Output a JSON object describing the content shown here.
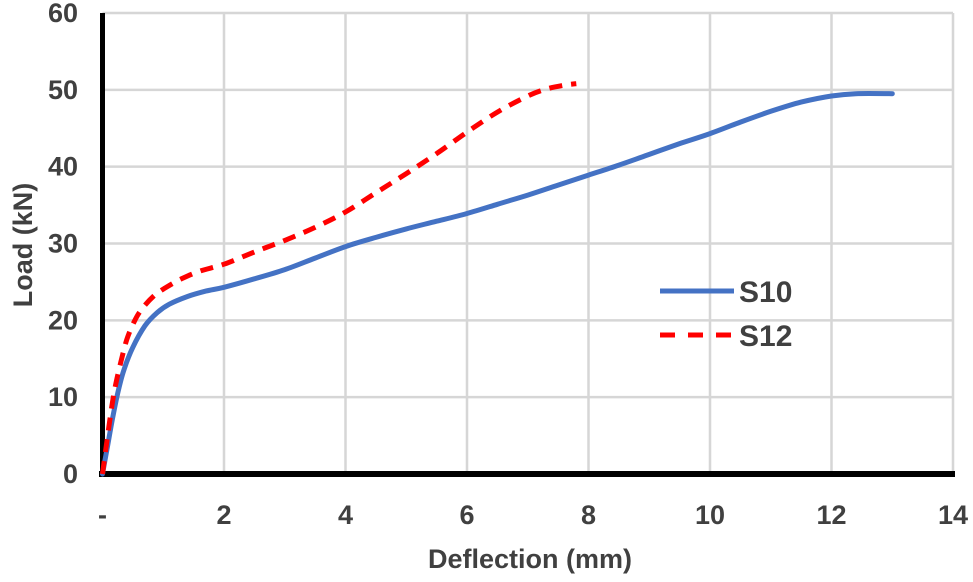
{
  "chart_data": {
    "type": "line",
    "title": "",
    "xlabel": "Deflection (mm)",
    "ylabel": "Load (kN)",
    "xlim": [
      0,
      14
    ],
    "ylim": [
      0,
      60
    ],
    "grid": true,
    "legend_position": "center-right",
    "x_ticks": [
      {
        "value": 0,
        "label": "-"
      },
      {
        "value": 2,
        "label": "2"
      },
      {
        "value": 4,
        "label": "4"
      },
      {
        "value": 6,
        "label": "6"
      },
      {
        "value": 8,
        "label": "8"
      },
      {
        "value": 10,
        "label": "10"
      },
      {
        "value": 12,
        "label": "12"
      },
      {
        "value": 14,
        "label": "14"
      }
    ],
    "y_ticks": [
      {
        "value": 0,
        "label": "0"
      },
      {
        "value": 10,
        "label": "10"
      },
      {
        "value": 20,
        "label": "20"
      },
      {
        "value": 30,
        "label": "30"
      },
      {
        "value": 40,
        "label": "40"
      },
      {
        "value": 50,
        "label": "50"
      },
      {
        "value": 60,
        "label": "60"
      }
    ],
    "series": [
      {
        "name": "S10",
        "color": "#4472C4",
        "style": "solid",
        "points": [
          [
            0,
            0
          ],
          [
            0.08,
            3.5
          ],
          [
            0.16,
            7
          ],
          [
            0.25,
            10.5
          ],
          [
            0.35,
            13.5
          ],
          [
            0.5,
            16.5
          ],
          [
            0.7,
            19.3
          ],
          [
            0.9,
            21
          ],
          [
            1.1,
            22.1
          ],
          [
            1.4,
            23.1
          ],
          [
            1.7,
            23.8
          ],
          [
            2,
            24.3
          ],
          [
            2.5,
            25.4
          ],
          [
            3,
            26.6
          ],
          [
            3.5,
            28.1
          ],
          [
            4,
            29.6
          ],
          [
            4.5,
            30.8
          ],
          [
            5,
            31.9
          ],
          [
            5.5,
            32.9
          ],
          [
            6,
            33.9
          ],
          [
            6.5,
            35.1
          ],
          [
            7,
            36.3
          ],
          [
            7.5,
            37.6
          ],
          [
            8,
            38.9
          ],
          [
            8.5,
            40.2
          ],
          [
            9,
            41.6
          ],
          [
            9.5,
            43
          ],
          [
            10,
            44.3
          ],
          [
            10.5,
            45.8
          ],
          [
            11,
            47.2
          ],
          [
            11.5,
            48.4
          ],
          [
            12,
            49.2
          ],
          [
            12.4,
            49.5
          ],
          [
            13,
            49.5
          ]
        ]
      },
      {
        "name": "S12",
        "color": "#FF0000",
        "style": "dashed",
        "points": [
          [
            0,
            0
          ],
          [
            0.06,
            3.5
          ],
          [
            0.12,
            7
          ],
          [
            0.2,
            11
          ],
          [
            0.3,
            14.5
          ],
          [
            0.4,
            17.5
          ],
          [
            0.52,
            19.8
          ],
          [
            0.65,
            21.5
          ],
          [
            0.85,
            23.2
          ],
          [
            1.05,
            24.3
          ],
          [
            1.3,
            25.4
          ],
          [
            1.6,
            26.4
          ],
          [
            2,
            27.3
          ],
          [
            2.5,
            28.9
          ],
          [
            3,
            30.4
          ],
          [
            3.5,
            32.1
          ],
          [
            4,
            34.1
          ],
          [
            4.5,
            36.6
          ],
          [
            5,
            39.1
          ],
          [
            5.5,
            41.7
          ],
          [
            6,
            44.5
          ],
          [
            6.5,
            47.1
          ],
          [
            7,
            49.2
          ],
          [
            7.3,
            50.1
          ],
          [
            7.6,
            50.6
          ],
          [
            7.8,
            50.8
          ]
        ]
      }
    ]
  },
  "colors": {
    "grid": "#D6D6D6",
    "axis": "#000000",
    "text": "#404040",
    "background": "#FFFFFF",
    "s10": "#4472C4",
    "s12": "#FF0000"
  }
}
